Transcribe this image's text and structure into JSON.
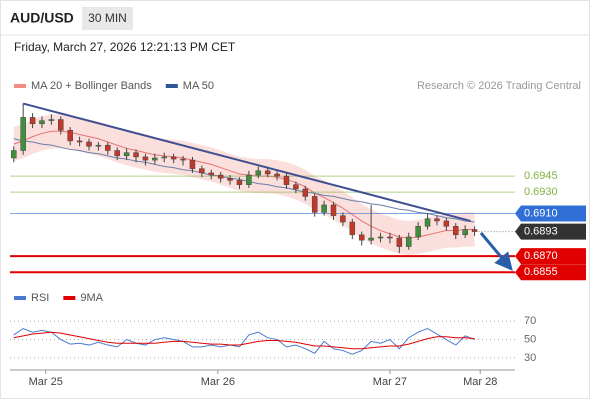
{
  "chart_data": {
    "type": "candlestick",
    "title": "AUD/USD",
    "timeframe": "30 MIN",
    "subtitle": "Friday, March 27, 2026 12:21:13 PM CET",
    "credit": "Research © 2026 Trading Central",
    "legend": [
      {
        "name": "MA 20 + Bollinger Bands",
        "color": "#f28b82"
      },
      {
        "name": "MA 50",
        "color": "#2f5597"
      }
    ],
    "ylim": [
      0.6843,
      0.7021
    ],
    "xlim": [
      -0.4,
      53.3
    ],
    "xticks": [
      {
        "value": 3.4,
        "label": "Mar 25"
      },
      {
        "value": 21.7,
        "label": "Mar 26"
      },
      {
        "value": 40,
        "label": "Mar 27"
      },
      {
        "value": 49.6,
        "label": "Mar 28"
      }
    ],
    "up_color": "#3f8f3f",
    "down_color": "#c0392b",
    "candles": [
      [
        0.6962,
        0.6973,
        0.6958,
        0.6969
      ],
      [
        0.6969,
        0.7013,
        0.6965,
        0.7
      ],
      [
        0.7,
        0.7004,
        0.699,
        0.6994
      ],
      [
        0.6994,
        0.7001,
        0.699,
        0.6997
      ],
      [
        0.6997,
        0.7003,
        0.6993,
        0.6998
      ],
      [
        0.6998,
        0.7001,
        0.6984,
        0.6988
      ],
      [
        0.6988,
        0.6991,
        0.6974,
        0.6978
      ],
      [
        0.6978,
        0.6982,
        0.6973,
        0.6977
      ],
      [
        0.6977,
        0.698,
        0.6969,
        0.6973
      ],
      [
        0.6973,
        0.6977,
        0.6969,
        0.6974
      ],
      [
        0.6974,
        0.6977,
        0.6965,
        0.6969
      ],
      [
        0.6969,
        0.6972,
        0.696,
        0.6964
      ],
      [
        0.6964,
        0.6971,
        0.696,
        0.6967
      ],
      [
        0.6967,
        0.697,
        0.6958,
        0.6963
      ],
      [
        0.6963,
        0.6966,
        0.6955,
        0.696
      ],
      [
        0.696,
        0.6966,
        0.6956,
        0.6962
      ],
      [
        0.6962,
        0.6967,
        0.6958,
        0.6963
      ],
      [
        0.6963,
        0.6966,
        0.6957,
        0.6961
      ],
      [
        0.6961,
        0.6964,
        0.6955,
        0.696
      ],
      [
        0.696,
        0.6963,
        0.6948,
        0.6952
      ],
      [
        0.6952,
        0.6955,
        0.6944,
        0.6948
      ],
      [
        0.6948,
        0.6951,
        0.6942,
        0.6946
      ],
      [
        0.6946,
        0.6949,
        0.6939,
        0.6943
      ],
      [
        0.6943,
        0.6946,
        0.6937,
        0.6941
      ],
      [
        0.6941,
        0.6944,
        0.6933,
        0.6937
      ],
      [
        0.6937,
        0.695,
        0.6934,
        0.6946
      ],
      [
        0.6946,
        0.6954,
        0.6943,
        0.695
      ],
      [
        0.695,
        0.6953,
        0.6944,
        0.6947
      ],
      [
        0.6947,
        0.695,
        0.6941,
        0.6945
      ],
      [
        0.6945,
        0.6948,
        0.6933,
        0.6937
      ],
      [
        0.6937,
        0.694,
        0.6929,
        0.6933
      ],
      [
        0.6933,
        0.6936,
        0.6922,
        0.6926
      ],
      [
        0.6926,
        0.6929,
        0.6907,
        0.6911
      ],
      [
        0.6911,
        0.6922,
        0.6908,
        0.6918
      ],
      [
        0.6918,
        0.6921,
        0.6904,
        0.6908
      ],
      [
        0.6908,
        0.6911,
        0.6898,
        0.6902
      ],
      [
        0.6902,
        0.6905,
        0.6886,
        0.689
      ],
      [
        0.689,
        0.6893,
        0.688,
        0.6885
      ],
      [
        0.6885,
        0.6918,
        0.6881,
        0.6887
      ],
      [
        0.6887,
        0.6892,
        0.6883,
        0.6888
      ],
      [
        0.6888,
        0.6892,
        0.6882,
        0.6887
      ],
      [
        0.6887,
        0.689,
        0.6873,
        0.6879
      ],
      [
        0.6879,
        0.6892,
        0.6876,
        0.6888
      ],
      [
        0.6888,
        0.6902,
        0.6885,
        0.6898
      ],
      [
        0.6898,
        0.691,
        0.6895,
        0.6905
      ],
      [
        0.6905,
        0.6908,
        0.6899,
        0.6903
      ],
      [
        0.6903,
        0.6906,
        0.6894,
        0.6898
      ],
      [
        0.6898,
        0.6901,
        0.6886,
        0.689
      ],
      [
        0.689,
        0.6899,
        0.6887,
        0.6895
      ],
      [
        0.6895,
        0.6898,
        0.6889,
        0.6893
      ]
    ],
    "ma20": [
      0.6975,
      0.6978,
      0.6982,
      0.6985,
      0.6987,
      0.6987,
      0.6986,
      0.6984,
      0.6982,
      0.698,
      0.6977,
      0.6974,
      0.6971,
      0.6969,
      0.6967,
      0.6965,
      0.6964,
      0.6963,
      0.6962,
      0.696,
      0.6958,
      0.6956,
      0.6953,
      0.695,
      0.6947,
      0.6946,
      0.6945,
      0.6945,
      0.6944,
      0.6942,
      0.6939,
      0.6935,
      0.6929,
      0.6925,
      0.692,
      0.6915,
      0.6909,
      0.6903,
      0.6898,
      0.6894,
      0.6891,
      0.6888,
      0.6887,
      0.6888,
      0.689,
      0.6892,
      0.6894,
      0.6894,
      0.6895,
      0.6895
    ],
    "bb_upper": [
      0.6991,
      0.6994,
      0.6998,
      0.7001,
      0.7003,
      0.7003,
      0.7002,
      0.7,
      0.6998,
      0.6996,
      0.6993,
      0.699,
      0.6987,
      0.6985,
      0.6983,
      0.6981,
      0.698,
      0.6979,
      0.6978,
      0.6976,
      0.6974,
      0.6972,
      0.6969,
      0.6966,
      0.6963,
      0.6962,
      0.6961,
      0.6961,
      0.696,
      0.6958,
      0.6955,
      0.6951,
      0.6945,
      0.6941,
      0.6936,
      0.6931,
      0.6925,
      0.6919,
      0.6914,
      0.691,
      0.6907,
      0.6904,
      0.6903,
      0.6904,
      0.6906,
      0.6908,
      0.691,
      0.691,
      0.6911,
      0.6911
    ],
    "bb_lower": [
      0.6959,
      0.6962,
      0.6966,
      0.6969,
      0.6971,
      0.6971,
      0.697,
      0.6968,
      0.6966,
      0.6964,
      0.6961,
      0.6958,
      0.6955,
      0.6953,
      0.6951,
      0.6949,
      0.6948,
      0.6947,
      0.6946,
      0.6944,
      0.6942,
      0.694,
      0.6937,
      0.6934,
      0.6931,
      0.693,
      0.6929,
      0.6929,
      0.6928,
      0.6926,
      0.6923,
      0.6919,
      0.6913,
      0.6909,
      0.6904,
      0.6899,
      0.6893,
      0.6887,
      0.6882,
      0.6878,
      0.6875,
      0.6872,
      0.6871,
      0.6872,
      0.6874,
      0.6876,
      0.6878,
      0.6878,
      0.6879,
      0.6879
    ],
    "ma50": [
      0.698,
      0.6978,
      0.6977,
      0.6975,
      0.6974,
      0.6972,
      0.697,
      0.6969,
      0.6967,
      0.6966,
      0.6964,
      0.6962,
      0.6961,
      0.6959,
      0.6958,
      0.6956,
      0.6954,
      0.6953,
      0.6951,
      0.695,
      0.6948,
      0.6946,
      0.6945,
      0.6943,
      0.6942,
      0.694,
      0.6938,
      0.6937,
      0.6935,
      0.6934,
      0.6932,
      0.693,
      0.6929,
      0.6927,
      0.6926,
      0.6924,
      0.6922,
      0.6921,
      0.6919,
      0.6918,
      0.6916,
      0.6914,
      0.6913,
      0.6911,
      0.691,
      0.6908,
      0.6906,
      0.6905,
      0.6903,
      0.6902
    ],
    "trendline": [
      0.7013,
      0.6903
    ],
    "levels": [
      {
        "value": 0.6945,
        "color": "#7cb342",
        "box": false
      },
      {
        "value": 0.693,
        "label": "0.6930",
        "color": "#7cb342",
        "box": false
      },
      {
        "value": 0.691,
        "label": "0.6910",
        "color": "#2f6fd6",
        "box": true
      },
      {
        "value": 0.6893,
        "color": "#333333",
        "box": true,
        "current": true
      },
      {
        "value": 0.687,
        "label": "0.6870",
        "color": "#e00000",
        "box": true
      },
      {
        "value": 0.6855,
        "color": "#e00000",
        "box": true
      }
    ],
    "rsi": {
      "legend": [
        {
          "name": "RSI",
          "color": "#4a7bd0"
        },
        {
          "name": "9MA",
          "color": "#e00000"
        }
      ],
      "ylim": [
        19,
        80
      ],
      "yticks": [
        30,
        50,
        70
      ],
      "values": [
        55,
        62,
        58,
        60,
        58,
        50,
        45,
        46,
        44,
        47,
        44,
        42,
        50,
        46,
        44,
        50,
        52,
        50,
        48,
        42,
        42,
        44,
        42,
        44,
        42,
        55,
        58,
        52,
        50,
        42,
        44,
        40,
        35,
        48,
        40,
        38,
        34,
        38,
        48,
        46,
        50,
        40,
        52,
        58,
        62,
        56,
        50,
        44,
        54,
        50
      ],
      "ma9": [
        52,
        54,
        56,
        57,
        58,
        57,
        55,
        53,
        51,
        49,
        47,
        46,
        46,
        46,
        46,
        46,
        47,
        48,
        48,
        47,
        46,
        45,
        45,
        44,
        44,
        46,
        48,
        49,
        49,
        48,
        47,
        45,
        43,
        43,
        42,
        41,
        40,
        40,
        41,
        42,
        43,
        43,
        45,
        48,
        51,
        53,
        53,
        52,
        52,
        51
      ]
    }
  }
}
